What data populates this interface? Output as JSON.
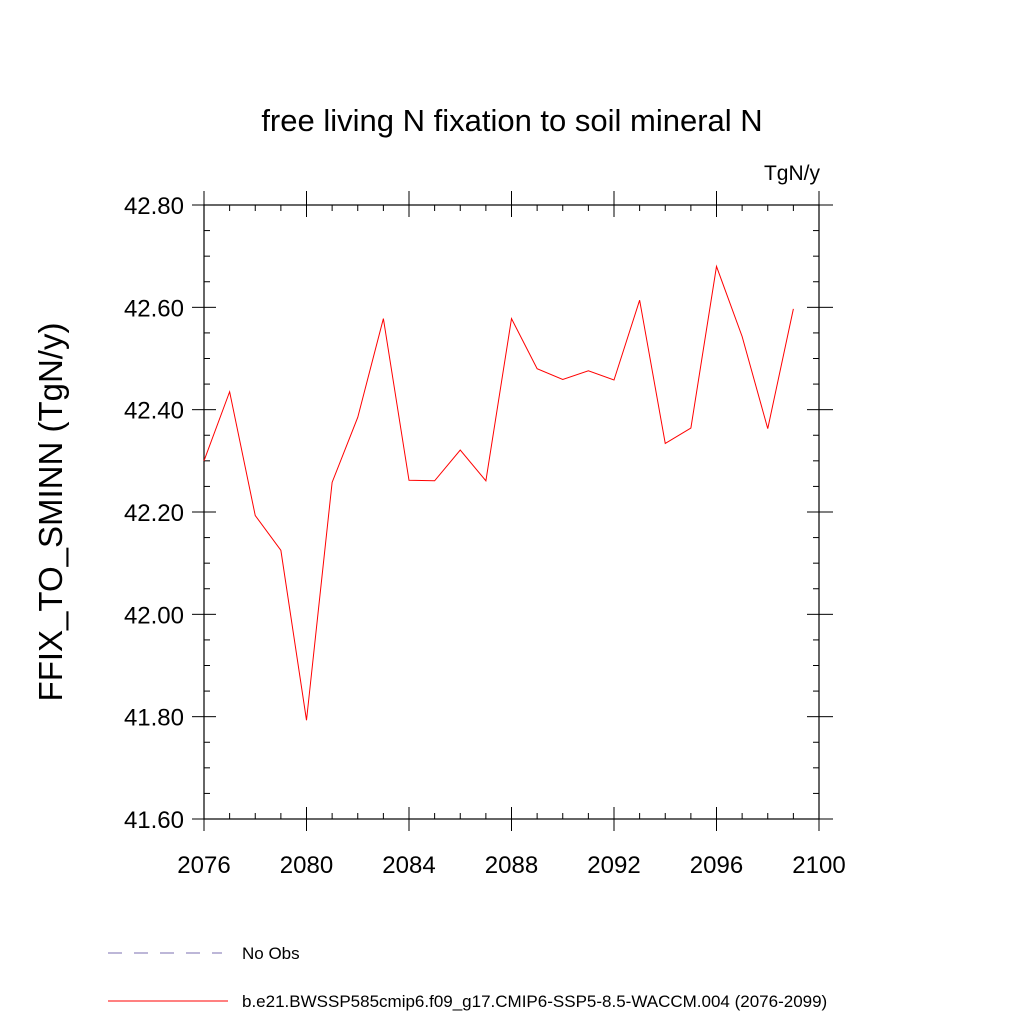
{
  "chart_data": {
    "type": "line",
    "title": "free living N fixation to soil mineral N",
    "units_label": "TgN/y",
    "xlabel": "",
    "ylabel": "FFIX_TO_SMINN  (TgN/y)",
    "xlim": [
      2076,
      2100
    ],
    "ylim": [
      41.6,
      42.8
    ],
    "x_ticks": [
      2076,
      2080,
      2084,
      2088,
      2092,
      2096,
      2100
    ],
    "y_ticks": [
      "41.60",
      "41.80",
      "42.00",
      "42.20",
      "42.40",
      "42.60",
      "42.80"
    ],
    "grid": false,
    "legend_position": "bottom",
    "series": [
      {
        "name": "No Obs",
        "color": "#7b6fb0",
        "dash": "dashed",
        "x": [],
        "values": []
      },
      {
        "name": "b.e21.BWSSP585cmip6.f09_g17.CMIP6-SSP5-8.5-WACCM.004 (2076-2099)",
        "color": "#ff0000",
        "dash": "solid",
        "x": [
          2076,
          2077,
          2078,
          2079,
          2080,
          2081,
          2082,
          2083,
          2084,
          2085,
          2086,
          2087,
          2088,
          2089,
          2090,
          2091,
          2092,
          2093,
          2094,
          2095,
          2096,
          2097,
          2098,
          2099
        ],
        "values": [
          42.3,
          42.435,
          42.193,
          42.125,
          41.793,
          42.258,
          42.385,
          42.578,
          42.262,
          42.261,
          42.321,
          42.261,
          42.578,
          42.48,
          42.459,
          42.476,
          42.458,
          42.614,
          42.334,
          42.364,
          42.68,
          42.543,
          42.363,
          42.597
        ]
      }
    ]
  }
}
